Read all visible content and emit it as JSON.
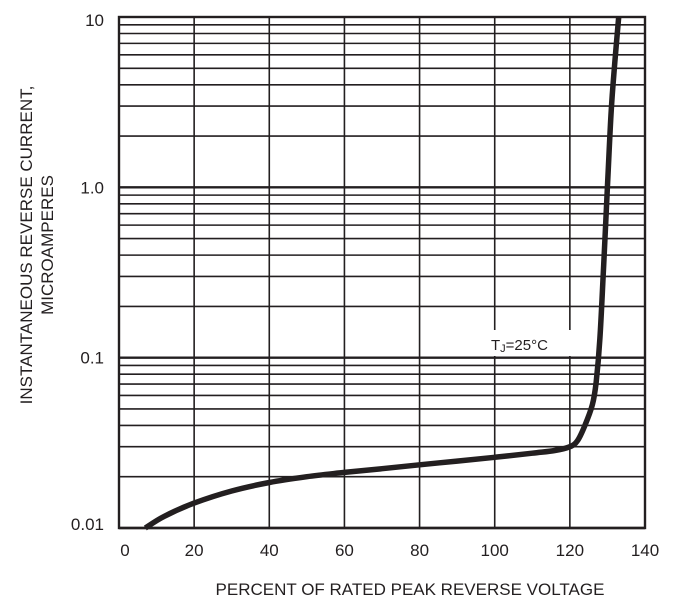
{
  "chart_data": {
    "type": "line",
    "xlabel": "PERCENT OF RATED PEAK REVERSE VOLTAGE",
    "ylabel_lines": [
      "INSTANTANEOUS REVERSE CURRENT,",
      "MICROAMPERES"
    ],
    "xlim": [
      0,
      140
    ],
    "ylim": [
      0.01,
      10
    ],
    "y_scale": "log",
    "grid": true,
    "x_ticks": [
      {
        "value": 0,
        "label": "0"
      },
      {
        "value": 20,
        "label": "20"
      },
      {
        "value": 40,
        "label": "40"
      },
      {
        "value": 60,
        "label": "60"
      },
      {
        "value": 80,
        "label": "80"
      },
      {
        "value": 100,
        "label": "100"
      },
      {
        "value": 120,
        "label": "120"
      },
      {
        "value": 140,
        "label": "140"
      }
    ],
    "y_ticks": [
      {
        "value": 0.01,
        "label": "0.01"
      },
      {
        "value": 0.1,
        "label": "0.1"
      },
      {
        "value": 1,
        "label": "1.0"
      },
      {
        "value": 10,
        "label": "10"
      }
    ],
    "annotation": {
      "main": "T",
      "sub": "J",
      "rest": "=25°C",
      "x": 116,
      "y": 0.12
    },
    "series": [
      {
        "x": [
          7,
          12,
          20,
          30,
          40,
          50,
          60,
          70,
          80,
          90,
          100,
          110,
          116,
          120,
          122,
          124,
          126,
          127,
          128,
          129,
          130,
          131,
          132,
          133
        ],
        "y": [
          0.01,
          0.0117,
          0.014,
          0.0165,
          0.0185,
          0.02,
          0.0212,
          0.0223,
          0.0235,
          0.0247,
          0.026,
          0.0275,
          0.0285,
          0.03,
          0.0325,
          0.04,
          0.053,
          0.072,
          0.13,
          0.35,
          1.0,
          2.8,
          5.5,
          10
        ]
      }
    ]
  }
}
